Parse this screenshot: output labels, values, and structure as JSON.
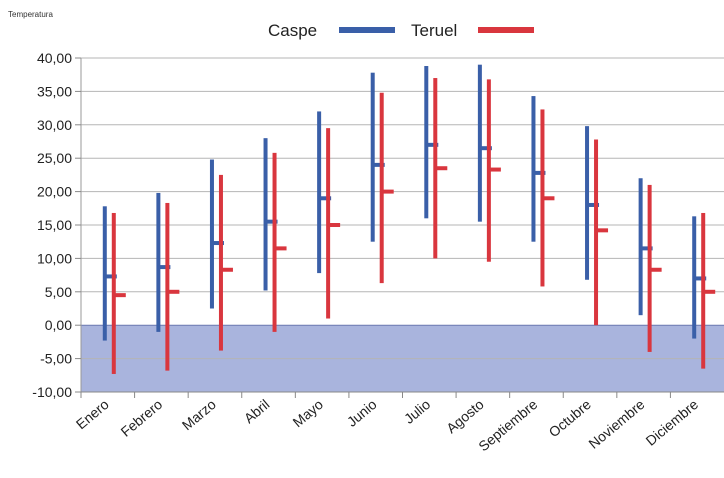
{
  "chart_data": {
    "type": "bar",
    "subtype": "high-low-mean range chart",
    "ylabel": "Temperatura",
    "ylim": [
      -10,
      40
    ],
    "ytick_step": 5,
    "ytick_labels": [
      "-10,00",
      "-5,00",
      "0,00",
      "5,00",
      "10,00",
      "15,00",
      "20,00",
      "25,00",
      "30,00",
      "35,00",
      "40,00"
    ],
    "grid": true,
    "legend_position": "top-center",
    "below_zero_fill": "#a9b4dd",
    "categories": [
      "Enero",
      "Febrero",
      "Marzo",
      "Abril",
      "Mayo",
      "Junio",
      "Julio",
      "Agosto",
      "Septiembre",
      "Octubre",
      "Noviembre",
      "Diciembre"
    ],
    "series": [
      {
        "name": "Caspe",
        "color": "#3a5fa8",
        "high": [
          17.8,
          19.8,
          24.8,
          28.0,
          32.0,
          37.8,
          38.8,
          39.0,
          34.3,
          29.8,
          22.0,
          16.3
        ],
        "low": [
          -2.3,
          -1.0,
          2.5,
          5.2,
          7.8,
          12.5,
          16.0,
          15.5,
          12.5,
          6.8,
          1.5,
          -2.0
        ],
        "mean": [
          7.3,
          8.7,
          12.3,
          15.5,
          19.0,
          24.0,
          27.0,
          26.5,
          22.8,
          18.0,
          11.5,
          7.0
        ]
      },
      {
        "name": "Teruel",
        "color": "#d9363e",
        "high": [
          16.8,
          18.3,
          22.5,
          25.8,
          29.5,
          34.8,
          37.0,
          36.8,
          32.3,
          27.8,
          21.0,
          16.8
        ],
        "low": [
          -7.3,
          -6.8,
          -3.8,
          -1.0,
          1.0,
          6.3,
          10.0,
          9.5,
          5.8,
          0.0,
          -4.0,
          -6.5
        ],
        "mean": [
          4.5,
          5.0,
          8.3,
          11.5,
          15.0,
          20.0,
          23.5,
          23.3,
          19.0,
          14.2,
          8.3,
          5.0
        ]
      }
    ]
  }
}
